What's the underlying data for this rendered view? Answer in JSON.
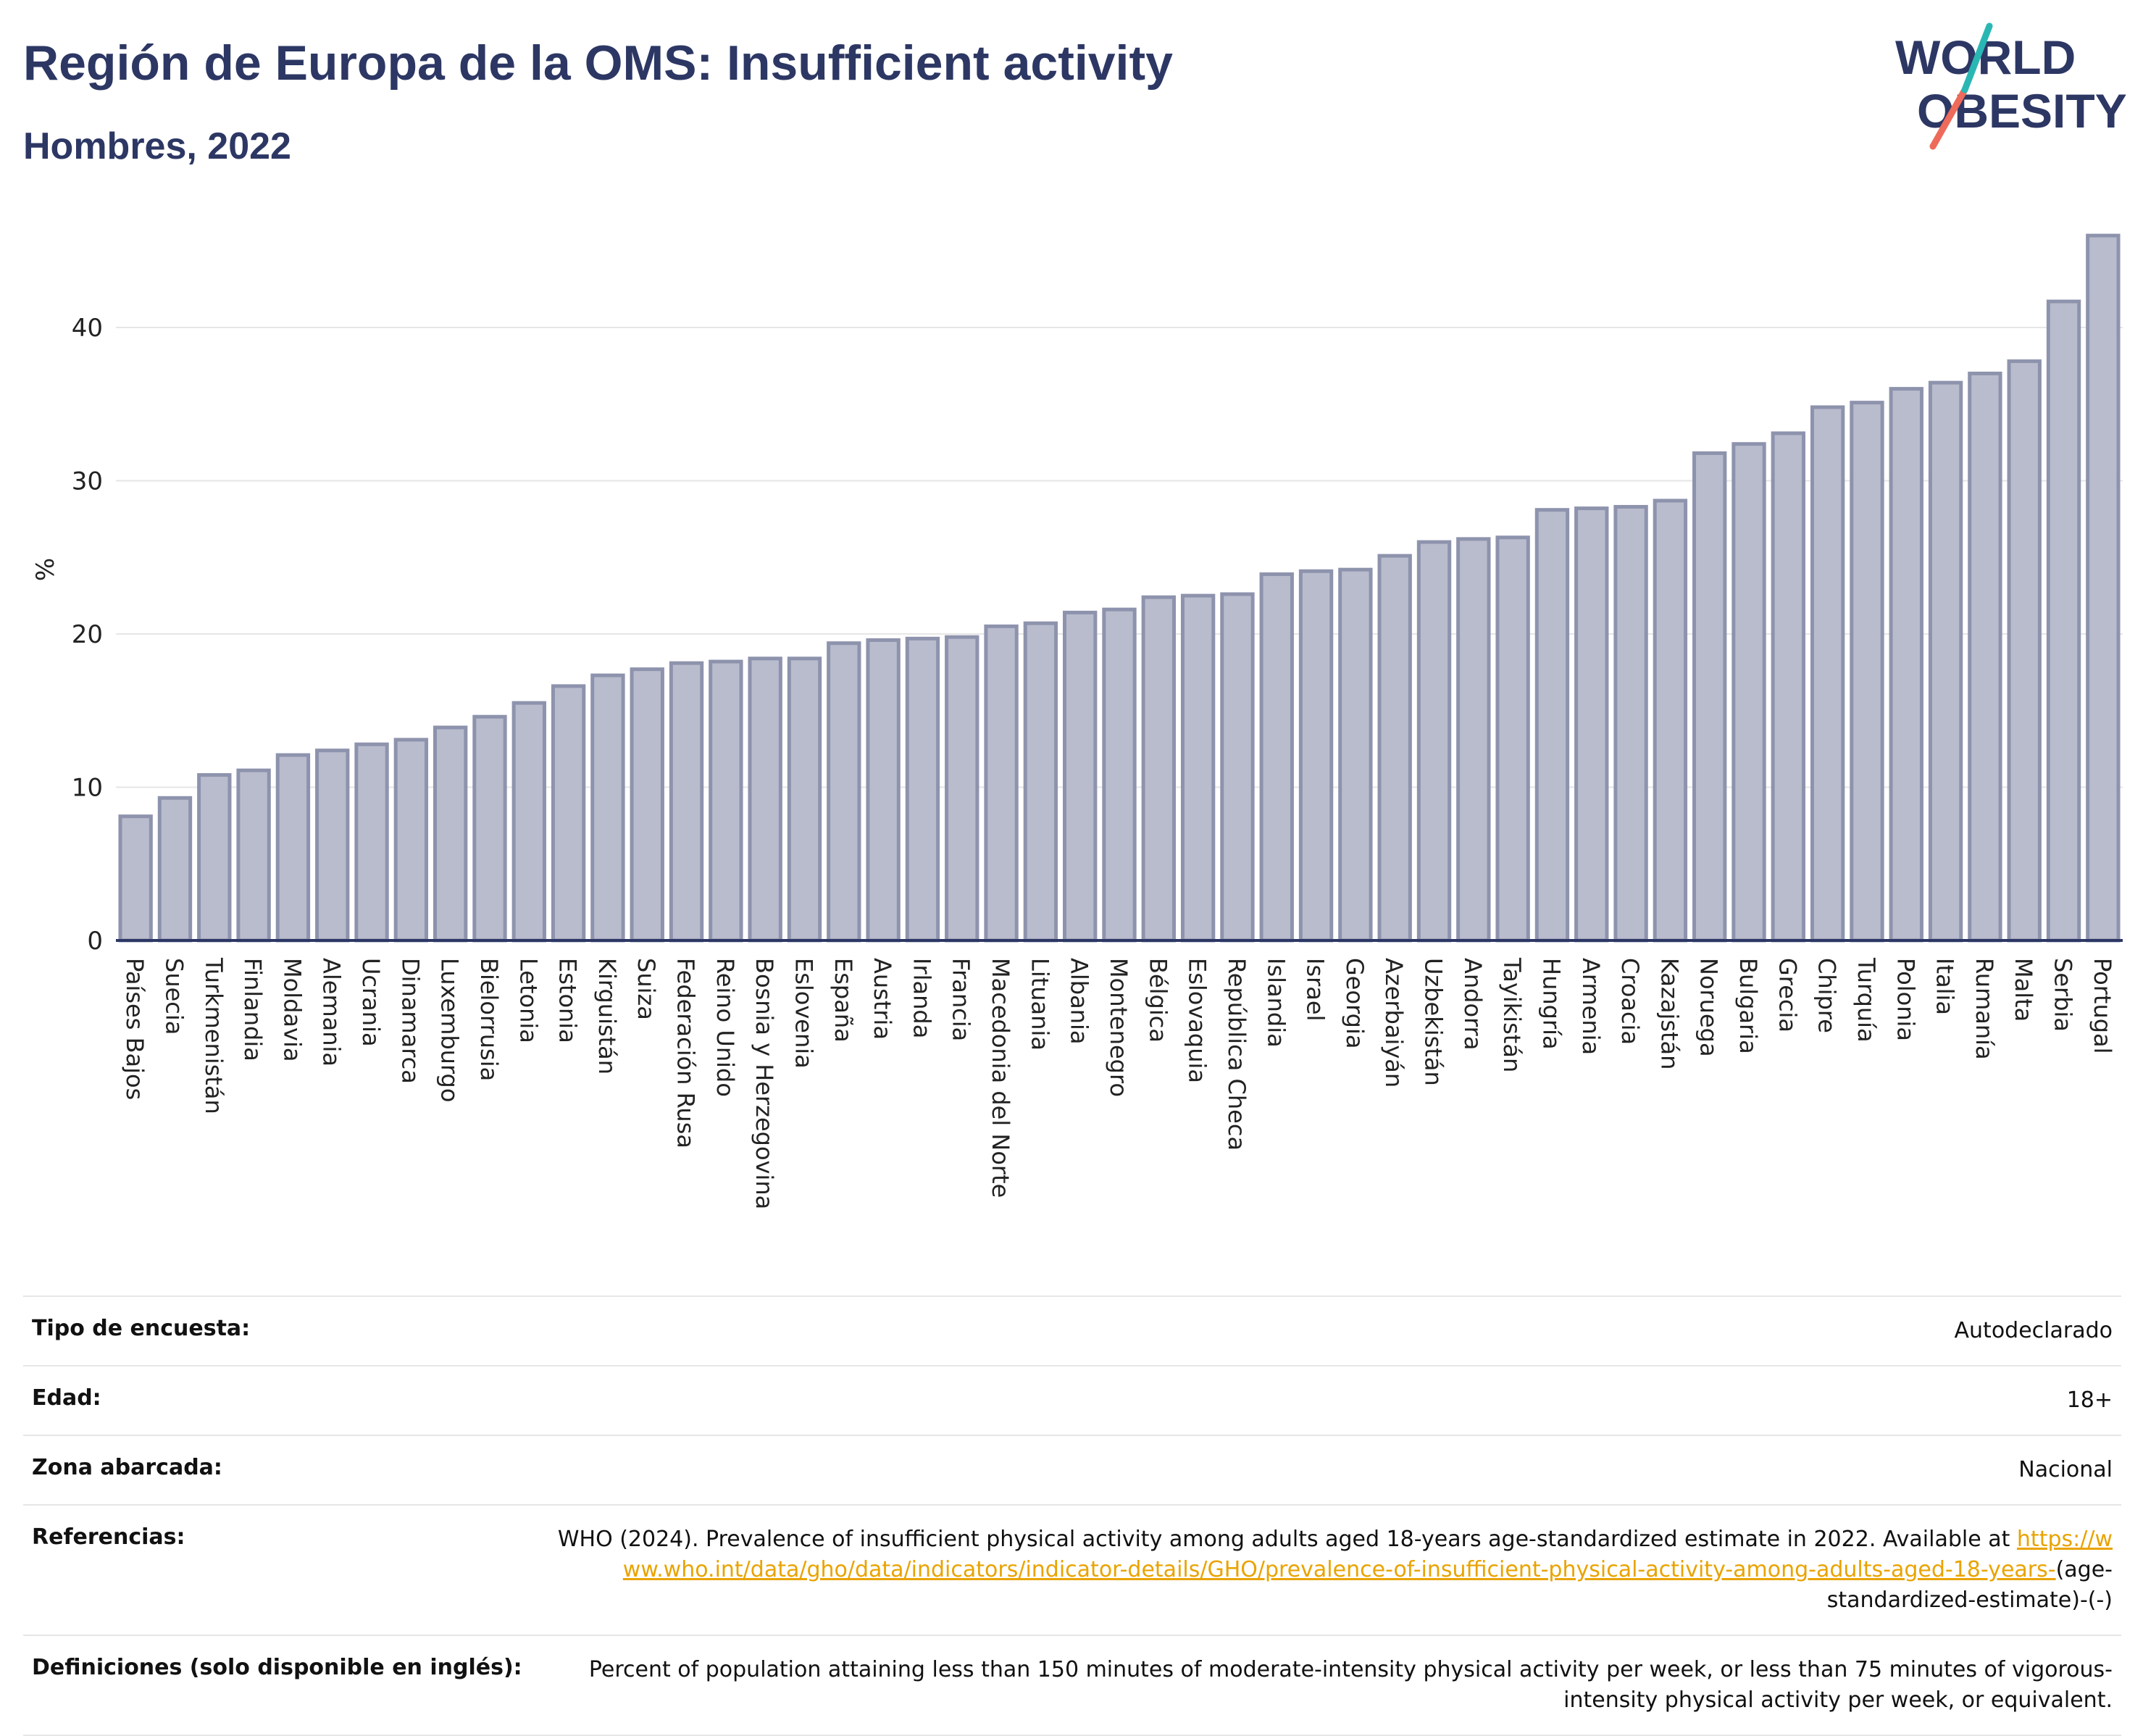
{
  "header": {
    "title": "Región de Europa de la OMS: Insufficient activity",
    "subtitle": "Hombres, 2022",
    "logo_text_line1": "WORLD",
    "logo_text_line2": "OBESITY"
  },
  "colors": {
    "title": "#2d3764",
    "bar_fill": "#b9bccd",
    "bar_stroke": "#8e93ad",
    "axis": "#2d3764",
    "grid": "#e6e6e6",
    "link": "#e9a300",
    "logo_teal": "#2ab7b4",
    "logo_red": "#ee6a5a"
  },
  "chart_data": {
    "type": "bar",
    "title": "Región de Europa de la OMS: Insufficient activity",
    "subtitle": "Hombres, 2022",
    "xlabel": "",
    "ylabel": "%",
    "ylim": [
      0,
      46
    ],
    "yticks": [
      0,
      10,
      20,
      30,
      40
    ],
    "grid": true,
    "categories": [
      "Países Bajos",
      "Suecia",
      "Turkmenistán",
      "Finlandia",
      "Moldavia",
      "Alemania",
      "Ucrania",
      "Dinamarca",
      "Luxemburgo",
      "Bielorrusia",
      "Letonia",
      "Estonia",
      "Kirguistán",
      "Suiza",
      "Federación Rusa",
      "Reino Unido",
      "Bosnia y Herzegovina",
      "Eslovenia",
      "España",
      "Austria",
      "Irlanda",
      "Francia",
      "Macedonia del Norte",
      "Lituania",
      "Albania",
      "Montenegro",
      "Bélgica",
      "Eslovaquia",
      "República Checa",
      "Islandia",
      "Israel",
      "Georgia",
      "Azerbaiyán",
      "Uzbekistán",
      "Andorra",
      "Tayikistán",
      "Hungría",
      "Armenia",
      "Croacia",
      "Kazajstán",
      "Noruega",
      "Bulgaria",
      "Grecia",
      "Chipre",
      "Turquía",
      "Polonia",
      "Italia",
      "Rumanía",
      "Malta",
      "Serbia",
      "Portugal"
    ],
    "values": [
      8.1,
      9.3,
      10.8,
      11.1,
      12.1,
      12.4,
      12.8,
      13.1,
      13.9,
      14.6,
      15.5,
      16.6,
      17.3,
      17.7,
      18.1,
      18.2,
      18.4,
      18.4,
      19.4,
      19.6,
      19.7,
      19.8,
      20.5,
      20.7,
      21.4,
      21.6,
      22.4,
      22.5,
      22.6,
      23.9,
      24.1,
      24.2,
      25.1,
      26.0,
      26.2,
      26.3,
      28.1,
      28.2,
      28.3,
      28.7,
      31.8,
      32.4,
      33.1,
      34.8,
      35.1,
      36.0,
      36.4,
      37.0,
      37.8,
      41.7,
      46.0
    ]
  },
  "info": {
    "survey_type_label": "Tipo de encuesta:",
    "survey_type_value": "Autodeclarado",
    "age_label": "Edad:",
    "age_value": "18+",
    "area_label": "Zona abarcada:",
    "area_value": "Nacional",
    "references_label": "Referencias:",
    "references_text": "WHO (2024). Prevalence of insufficient physical activity among adults aged 18-years age-standardized estimate in 2022. Available at",
    "references_link": "https://www.who.int/data/gho/data/indicators/indicator-details/GHO/prevalence-of-insufficient-physical-activity-among-adults-aged-18-years-",
    "references_suffix": "(age-standardized-estimate)-(-)",
    "definitions_label": "Definiciones (solo disponible en inglés):",
    "definitions_value": "Percent of population attaining less than 150 minutes of moderate-intensity physical activity per week, or less than 75 minutes of vigorous-intensity physical activity per week, or equivalent."
  }
}
